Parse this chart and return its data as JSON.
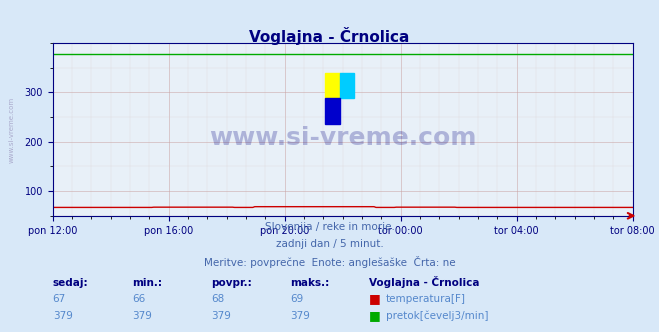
{
  "title": "Voglajna - Črnolica",
  "bg_color": "#d8e8f8",
  "plot_bg_color": "#e8f0f8",
  "grid_color_major": "#c8a0a0",
  "grid_color_minor": "#d8c8c8",
  "ylim": [
    50,
    400
  ],
  "yticks": [
    100,
    200,
    300
  ],
  "xlabel_ticks": [
    "pon 12:00",
    "pon 16:00",
    "pon 20:00",
    "tor 00:00",
    "tor 04:00",
    "tor 08:00"
  ],
  "n_points": 288,
  "temp_value": 67,
  "temp_min": 66,
  "temp_avg": 68,
  "temp_max": 69,
  "flow_value": 379,
  "flow_min": 379,
  "flow_avg": 379,
  "flow_max": 379,
  "temp_color": "#cc0000",
  "flow_color": "#00aa00",
  "title_color": "#000080",
  "axis_color": "#000080",
  "text_color": "#000080",
  "subtitle1": "Slovenija / reke in morje.",
  "subtitle2": "zadnji dan / 5 minut.",
  "subtitle3": "Meritve: povprečne  Enote: anglešaške  Črta: ne",
  "watermark": "www.si-vreme.com",
  "station_label": "Voglajna - Črnolica",
  "label_temp": "temperatura[F]",
  "label_flow": "pretok[čevelj3/min]",
  "col_headers": [
    "sedaj:",
    "min.:",
    "povpr.:",
    "maks.:"
  ],
  "temp_row": [
    "67",
    "66",
    "68",
    "69"
  ],
  "flow_row": [
    "379",
    "379",
    "379",
    "379"
  ]
}
